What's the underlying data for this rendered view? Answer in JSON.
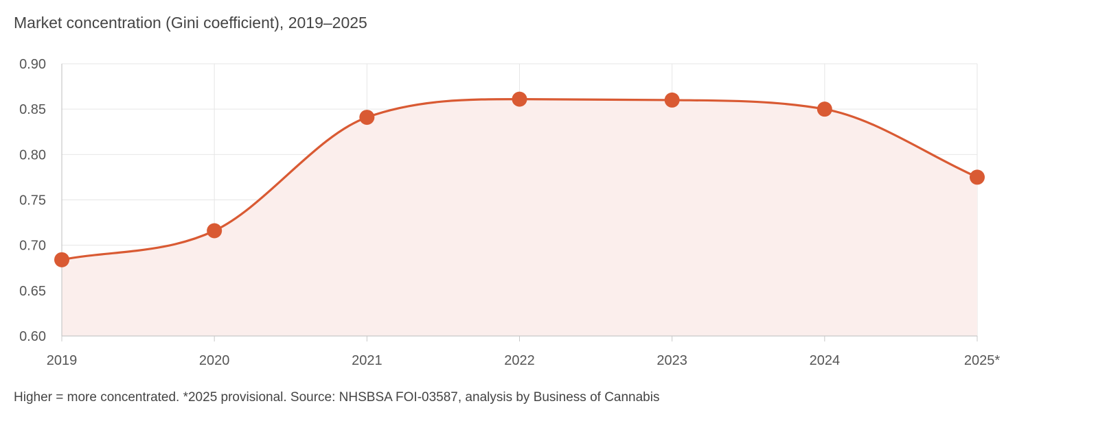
{
  "chart_data": {
    "type": "area",
    "title": "Market concentration (Gini coefficient), 2019–2025",
    "xlabel": "",
    "ylabel": "",
    "categories": [
      "2019",
      "2020",
      "2021",
      "2022",
      "2023",
      "2024",
      "2025*"
    ],
    "series": [
      {
        "values": [
          0.684,
          0.716,
          0.841,
          0.861,
          0.86,
          0.85,
          0.775
        ]
      }
    ],
    "ylim": [
      0.6,
      0.9
    ],
    "yticks": [
      "0.90",
      "0.85",
      "0.80",
      "0.75",
      "0.70",
      "0.65",
      "0.60"
    ],
    "grid": true,
    "legend": "none",
    "colors": {
      "line": "#d95a33",
      "fill": "#fbeeec",
      "grid": "#e6e6e6",
      "axis": "#c8c8c8"
    }
  },
  "caption": "Higher = more concentrated. *2025 provisional. Source: NHSBSA FOI-03587, analysis by Business of Cannabis"
}
